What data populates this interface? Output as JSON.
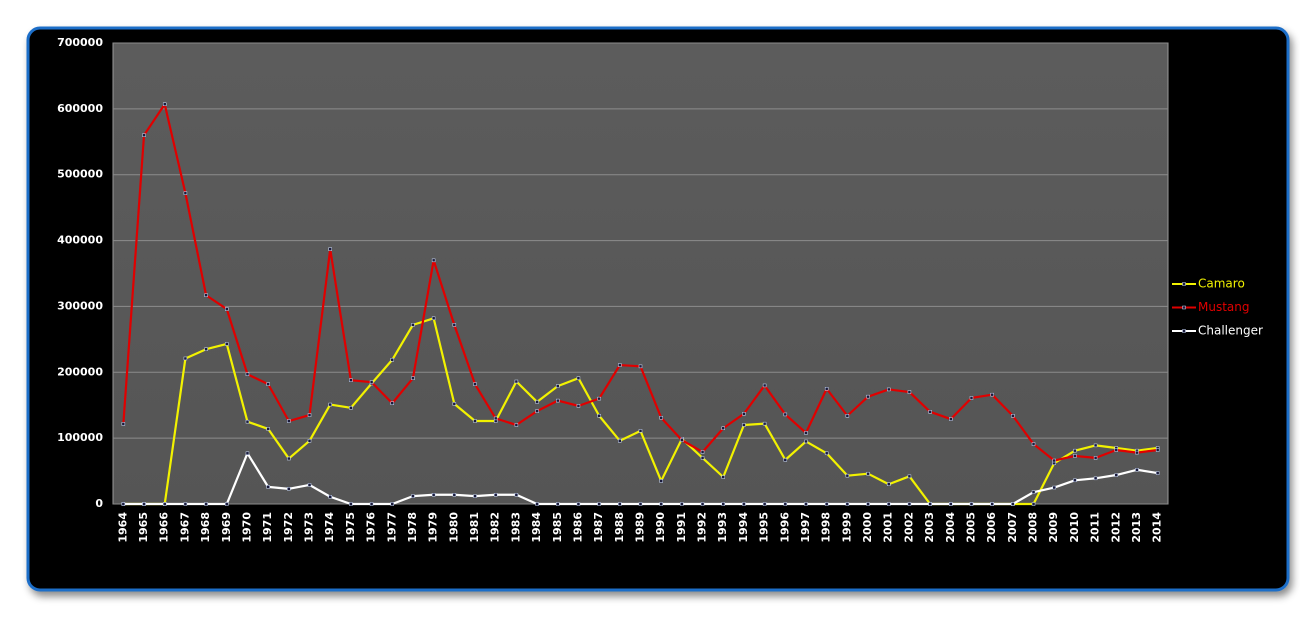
{
  "chart_data": {
    "type": "line",
    "categories": [
      "1964",
      "1965",
      "1966",
      "1967",
      "1968",
      "1969",
      "1970",
      "1971",
      "1972",
      "1973",
      "1974",
      "1975",
      "1976",
      "1977",
      "1978",
      "1979",
      "1980",
      "1981",
      "1982",
      "1983",
      "1984",
      "1985",
      "1986",
      "1987",
      "1988",
      "1989",
      "1990",
      "1991",
      "1992",
      "1993",
      "1994",
      "1995",
      "1996",
      "1997",
      "1998",
      "1999",
      "2000",
      "2001",
      "2002",
      "2003",
      "2004",
      "2005",
      "2006",
      "2007",
      "2008",
      "2009",
      "2010",
      "2011",
      "2012",
      "2013",
      "2014"
    ],
    "series": [
      {
        "name": "Camaro",
        "color": "#f2f200",
        "values": [
          0,
          0,
          0,
          221000,
          235000,
          243000,
          125000,
          114000,
          69000,
          96000,
          151000,
          146000,
          183000,
          219000,
          272000,
          282000,
          152000,
          126000,
          126000,
          186000,
          155000,
          179000,
          191000,
          134000,
          96000,
          111000,
          35000,
          99000,
          70000,
          41000,
          120000,
          122000,
          67000,
          95000,
          77000,
          43000,
          46000,
          30000,
          42000,
          0,
          0,
          0,
          0,
          0,
          0,
          62000,
          81000,
          89000,
          85000,
          81000,
          85000
        ]
      },
      {
        "name": "Mustang",
        "color": "#e00000",
        "values": [
          121600,
          560000,
          607000,
          472000,
          317000,
          296000,
          197000,
          182000,
          126000,
          135000,
          387000,
          188000,
          185000,
          153000,
          191000,
          370000,
          272000,
          182000,
          130000,
          120000,
          141000,
          157000,
          149000,
          160000,
          211000,
          209000,
          131000,
          97000,
          79000,
          115000,
          137000,
          180000,
          136000,
          108000,
          175000,
          134000,
          163000,
          174000,
          170000,
          140000,
          129000,
          161000,
          166000,
          134000,
          91000,
          66000,
          73000,
          70000,
          82000,
          78000,
          82000
        ]
      },
      {
        "name": "Challenger",
        "color": "#ffffff",
        "values": [
          0,
          0,
          0,
          0,
          0,
          0,
          77000,
          26000,
          23000,
          29000,
          11000,
          0,
          0,
          0,
          12000,
          14000,
          14000,
          12000,
          14000,
          14000,
          0,
          0,
          0,
          0,
          0,
          0,
          0,
          0,
          0,
          0,
          0,
          0,
          0,
          0,
          0,
          0,
          0,
          0,
          0,
          0,
          0,
          0,
          0,
          0,
          18000,
          25000,
          36000,
          39000,
          44000,
          52000,
          47000
        ]
      }
    ],
    "ylim": [
      0,
      700000
    ],
    "yticks": [
      0,
      100000,
      200000,
      300000,
      400000,
      500000,
      600000,
      700000
    ],
    "grid": true,
    "legend": "right"
  }
}
